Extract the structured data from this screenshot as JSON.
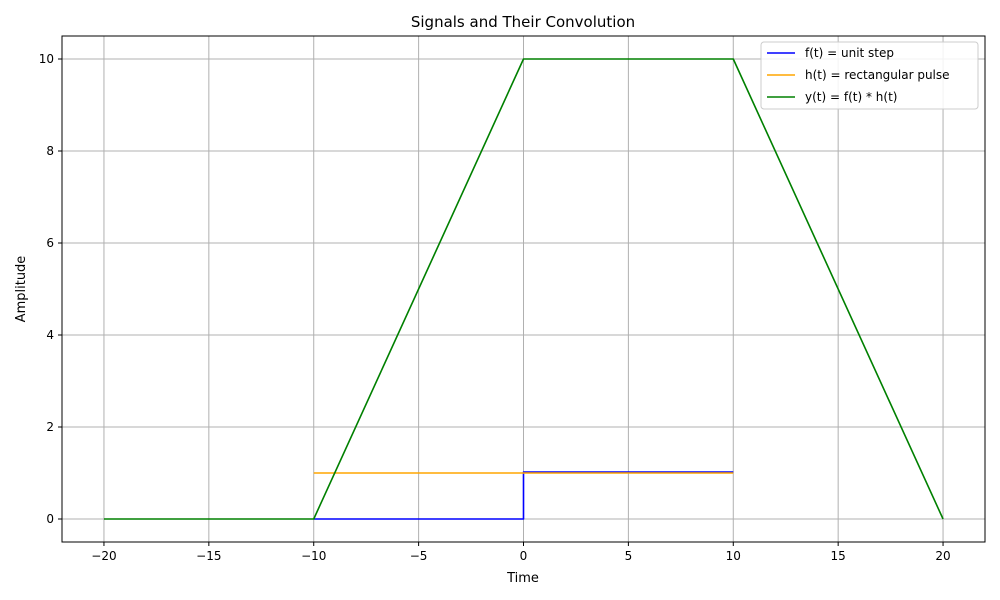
{
  "chart_data": {
    "type": "line",
    "title": "Signals and Their Convolution",
    "xlabel": "Time",
    "ylabel": "Amplitude",
    "xlim": [
      -22,
      22
    ],
    "ylim": [
      -0.5,
      10.5
    ],
    "xticks": [
      -20,
      -15,
      -10,
      -5,
      0,
      5,
      10,
      15,
      20
    ],
    "xtick_labels": [
      "−20",
      "−15",
      "−10",
      "−5",
      "0",
      "5",
      "10",
      "15",
      "20"
    ],
    "yticks": [
      0,
      2,
      4,
      6,
      8,
      10
    ],
    "ytick_labels": [
      "0",
      "2",
      "4",
      "6",
      "8",
      "10"
    ],
    "grid": true,
    "legend_position": "top-right",
    "series": [
      {
        "name": "f(t) = unit step",
        "color": "#0000ff",
        "x": [
          -10,
          0,
          0,
          10
        ],
        "y": [
          0,
          0,
          1.02,
          1.02
        ]
      },
      {
        "name": "h(t) = rectangular pulse",
        "color": "#ffa500",
        "x": [
          -10,
          10
        ],
        "y": [
          1,
          1
        ]
      },
      {
        "name": "y(t) = f(t) * h(t)",
        "color": "#008000",
        "x": [
          -20,
          -10,
          0,
          10,
          20
        ],
        "y": [
          0,
          0,
          10,
          10,
          0
        ]
      }
    ]
  }
}
